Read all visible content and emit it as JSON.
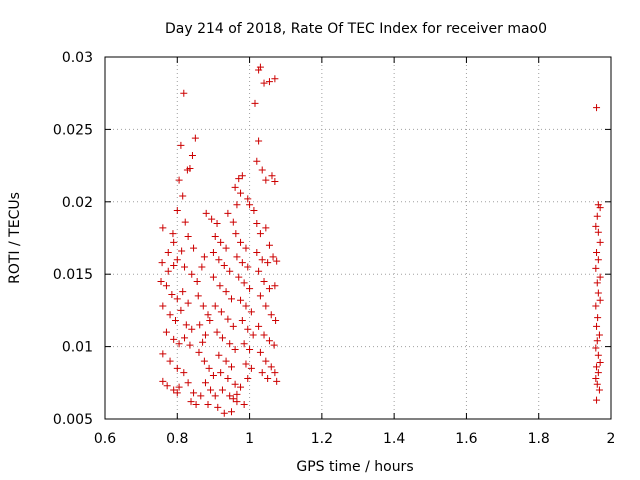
{
  "chart_data": {
    "type": "scatter",
    "title": "Day 214 of 2018, Rate Of TEC Index for receiver mao0",
    "xlabel": "GPS time / hours",
    "ylabel": "ROTI / TECUs",
    "xlim": [
      0.6,
      2.0
    ],
    "ylim": [
      0.005,
      0.03
    ],
    "x_ticks": [
      0.6,
      0.8,
      1.0,
      1.2,
      1.4,
      1.6,
      1.8,
      2.0
    ],
    "x_tick_labels": [
      "0.6",
      "0.8",
      "1",
      "1.2",
      "1.4",
      "1.6",
      "1.8",
      "2"
    ],
    "y_ticks": [
      0.005,
      0.01,
      0.015,
      0.02,
      0.025,
      0.03
    ],
    "y_tick_labels": [
      "0.005",
      "0.01",
      "0.015",
      "0.02",
      "0.025",
      "0.03"
    ],
    "grid": true,
    "marker": "+",
    "color": "#cc0000",
    "series": [
      {
        "name": "mao0",
        "points": [
          [
            0.818,
            0.0275
          ],
          [
            0.81,
            0.0239
          ],
          [
            0.85,
            0.0244
          ],
          [
            0.842,
            0.0232
          ],
          [
            0.835,
            0.0223
          ],
          [
            0.828,
            0.0222
          ],
          [
            0.805,
            0.0215
          ],
          [
            0.815,
            0.0204
          ],
          [
            0.8,
            0.0194
          ],
          [
            0.822,
            0.0186
          ],
          [
            0.788,
            0.0178
          ],
          [
            0.76,
            0.0182
          ],
          [
            0.79,
            0.0172
          ],
          [
            0.812,
            0.0166
          ],
          [
            0.775,
            0.0165
          ],
          [
            0.8,
            0.016
          ],
          [
            0.83,
            0.0176
          ],
          [
            0.845,
            0.0168
          ],
          [
            0.758,
            0.0158
          ],
          [
            0.775,
            0.0152
          ],
          [
            0.79,
            0.0156
          ],
          [
            0.82,
            0.0155
          ],
          [
            0.84,
            0.015
          ],
          [
            0.755,
            0.0145
          ],
          [
            0.77,
            0.0142
          ],
          [
            0.785,
            0.0136
          ],
          [
            0.8,
            0.0133
          ],
          [
            0.815,
            0.0138
          ],
          [
            0.83,
            0.013
          ],
          [
            0.76,
            0.0128
          ],
          [
            0.78,
            0.0122
          ],
          [
            0.795,
            0.0118
          ],
          [
            0.81,
            0.0125
          ],
          [
            0.825,
            0.0115
          ],
          [
            0.84,
            0.0112
          ],
          [
            0.77,
            0.011
          ],
          [
            0.79,
            0.0105
          ],
          [
            0.805,
            0.0102
          ],
          [
            0.82,
            0.0106
          ],
          [
            0.835,
            0.0101
          ],
          [
            0.76,
            0.0095
          ],
          [
            0.78,
            0.009
          ],
          [
            0.8,
            0.0085
          ],
          [
            0.818,
            0.0082
          ],
          [
            0.76,
            0.0076
          ],
          [
            0.772,
            0.0073
          ],
          [
            0.79,
            0.007
          ],
          [
            0.805,
            0.0072
          ],
          [
            0.83,
            0.0075
          ],
          [
            0.845,
            0.0068
          ],
          [
            0.8,
            0.0068
          ],
          [
            0.838,
            0.0062
          ],
          [
            0.852,
            0.006
          ],
          [
            0.865,
            0.0066
          ],
          [
            0.855,
            0.0145
          ],
          [
            0.868,
            0.0155
          ],
          [
            0.875,
            0.0162
          ],
          [
            0.858,
            0.0135
          ],
          [
            0.872,
            0.0128
          ],
          [
            0.885,
            0.0122
          ],
          [
            0.862,
            0.0115
          ],
          [
            0.878,
            0.0108
          ],
          [
            0.89,
            0.0118
          ],
          [
            0.87,
            0.0103
          ],
          [
            0.86,
            0.0096
          ],
          [
            0.875,
            0.009
          ],
          [
            0.888,
            0.0085
          ],
          [
            0.9,
            0.008
          ],
          [
            0.878,
            0.0075
          ],
          [
            0.892,
            0.007
          ],
          [
            0.905,
            0.0066
          ],
          [
            0.885,
            0.006
          ],
          [
            0.912,
            0.0058
          ],
          [
            0.93,
            0.0054
          ],
          [
            0.95,
            0.0055
          ],
          [
            0.88,
            0.0192
          ],
          [
            0.895,
            0.0188
          ],
          [
            0.91,
            0.0185
          ],
          [
            0.905,
            0.0176
          ],
          [
            0.92,
            0.0172
          ],
          [
            0.935,
            0.0168
          ],
          [
            0.9,
            0.0165
          ],
          [
            0.915,
            0.016
          ],
          [
            0.93,
            0.0156
          ],
          [
            0.945,
            0.0152
          ],
          [
            0.9,
            0.0148
          ],
          [
            0.918,
            0.0142
          ],
          [
            0.935,
            0.0138
          ],
          [
            0.95,
            0.0133
          ],
          [
            0.905,
            0.0128
          ],
          [
            0.922,
            0.0124
          ],
          [
            0.94,
            0.0119
          ],
          [
            0.955,
            0.0114
          ],
          [
            0.91,
            0.011
          ],
          [
            0.925,
            0.0106
          ],
          [
            0.945,
            0.0102
          ],
          [
            0.96,
            0.0098
          ],
          [
            0.915,
            0.0094
          ],
          [
            0.935,
            0.009
          ],
          [
            0.95,
            0.0086
          ],
          [
            0.92,
            0.0082
          ],
          [
            0.94,
            0.0078
          ],
          [
            0.96,
            0.0074
          ],
          [
            0.925,
            0.007
          ],
          [
            0.945,
            0.0066
          ],
          [
            0.965,
            0.0062
          ],
          [
            0.985,
            0.006
          ],
          [
            0.94,
            0.0192
          ],
          [
            0.955,
            0.0186
          ],
          [
            0.965,
            0.0198
          ],
          [
            0.975,
            0.0206
          ],
          [
            0.96,
            0.021
          ],
          [
            0.97,
            0.0216
          ],
          [
            0.98,
            0.0218
          ],
          [
            0.962,
            0.0178
          ],
          [
            0.975,
            0.0172
          ],
          [
            0.99,
            0.0168
          ],
          [
            0.965,
            0.0162
          ],
          [
            0.98,
            0.0158
          ],
          [
            0.995,
            0.0155
          ],
          [
            0.97,
            0.0148
          ],
          [
            0.985,
            0.0144
          ],
          [
            1.0,
            0.014
          ],
          [
            0.975,
            0.0132
          ],
          [
            0.99,
            0.0128
          ],
          [
            1.005,
            0.0124
          ],
          [
            0.98,
            0.0118
          ],
          [
            0.995,
            0.0112
          ],
          [
            1.01,
            0.0108
          ],
          [
            0.985,
            0.0102
          ],
          [
            1.0,
            0.0098
          ],
          [
            0.99,
            0.0088
          ],
          [
            1.005,
            0.0085
          ],
          [
            0.995,
            0.0078
          ],
          [
            0.975,
            0.0072
          ],
          [
            0.965,
            0.0067
          ],
          [
            0.955,
            0.0064
          ],
          [
            0.995,
            0.0202
          ],
          [
            1.0,
            0.0198
          ],
          [
            1.012,
            0.0194
          ],
          [
            1.03,
            0.0293
          ],
          [
            1.025,
            0.0291
          ],
          [
            1.04,
            0.0282
          ],
          [
            1.055,
            0.0283
          ],
          [
            1.07,
            0.0285
          ],
          [
            1.015,
            0.0268
          ],
          [
            1.025,
            0.0242
          ],
          [
            1.02,
            0.0228
          ],
          [
            1.035,
            0.0222
          ],
          [
            1.045,
            0.0215
          ],
          [
            1.062,
            0.0218
          ],
          [
            1.07,
            0.0214
          ],
          [
            1.02,
            0.0185
          ],
          [
            1.03,
            0.0178
          ],
          [
            1.045,
            0.0182
          ],
          [
            1.055,
            0.017
          ],
          [
            1.02,
            0.0165
          ],
          [
            1.035,
            0.016
          ],
          [
            1.05,
            0.0158
          ],
          [
            1.065,
            0.0162
          ],
          [
            1.075,
            0.0159
          ],
          [
            1.025,
            0.0152
          ],
          [
            1.04,
            0.0145
          ],
          [
            1.055,
            0.014
          ],
          [
            1.07,
            0.0142
          ],
          [
            1.03,
            0.0135
          ],
          [
            1.045,
            0.0128
          ],
          [
            1.06,
            0.0122
          ],
          [
            1.072,
            0.0118
          ],
          [
            1.025,
            0.0114
          ],
          [
            1.04,
            0.0108
          ],
          [
            1.055,
            0.0104
          ],
          [
            1.068,
            0.0101
          ],
          [
            1.03,
            0.0096
          ],
          [
            1.045,
            0.009
          ],
          [
            1.06,
            0.0086
          ],
          [
            1.07,
            0.0082
          ],
          [
            1.075,
            0.0076
          ],
          [
            1.05,
            0.0078
          ],
          [
            1.035,
            0.0082
          ],
          [
            1.96,
            0.0265
          ],
          [
            1.965,
            0.0198
          ],
          [
            1.97,
            0.0196
          ],
          [
            1.962,
            0.019
          ],
          [
            1.958,
            0.0183
          ],
          [
            1.965,
            0.0179
          ],
          [
            1.97,
            0.0172
          ],
          [
            1.96,
            0.0165
          ],
          [
            1.965,
            0.016
          ],
          [
            1.958,
            0.0154
          ],
          [
            1.97,
            0.0148
          ],
          [
            1.962,
            0.0144
          ],
          [
            1.965,
            0.0137
          ],
          [
            1.97,
            0.0132
          ],
          [
            1.958,
            0.0128
          ],
          [
            1.963,
            0.012
          ],
          [
            1.96,
            0.0114
          ],
          [
            1.968,
            0.0108
          ],
          [
            1.962,
            0.0104
          ],
          [
            1.958,
            0.0099
          ],
          [
            1.965,
            0.0094
          ],
          [
            1.97,
            0.0089
          ],
          [
            1.96,
            0.0086
          ],
          [
            1.965,
            0.0082
          ],
          [
            1.958,
            0.0078
          ],
          [
            1.962,
            0.0074
          ],
          [
            1.968,
            0.007
          ],
          [
            1.96,
            0.0063
          ]
        ]
      }
    ]
  }
}
